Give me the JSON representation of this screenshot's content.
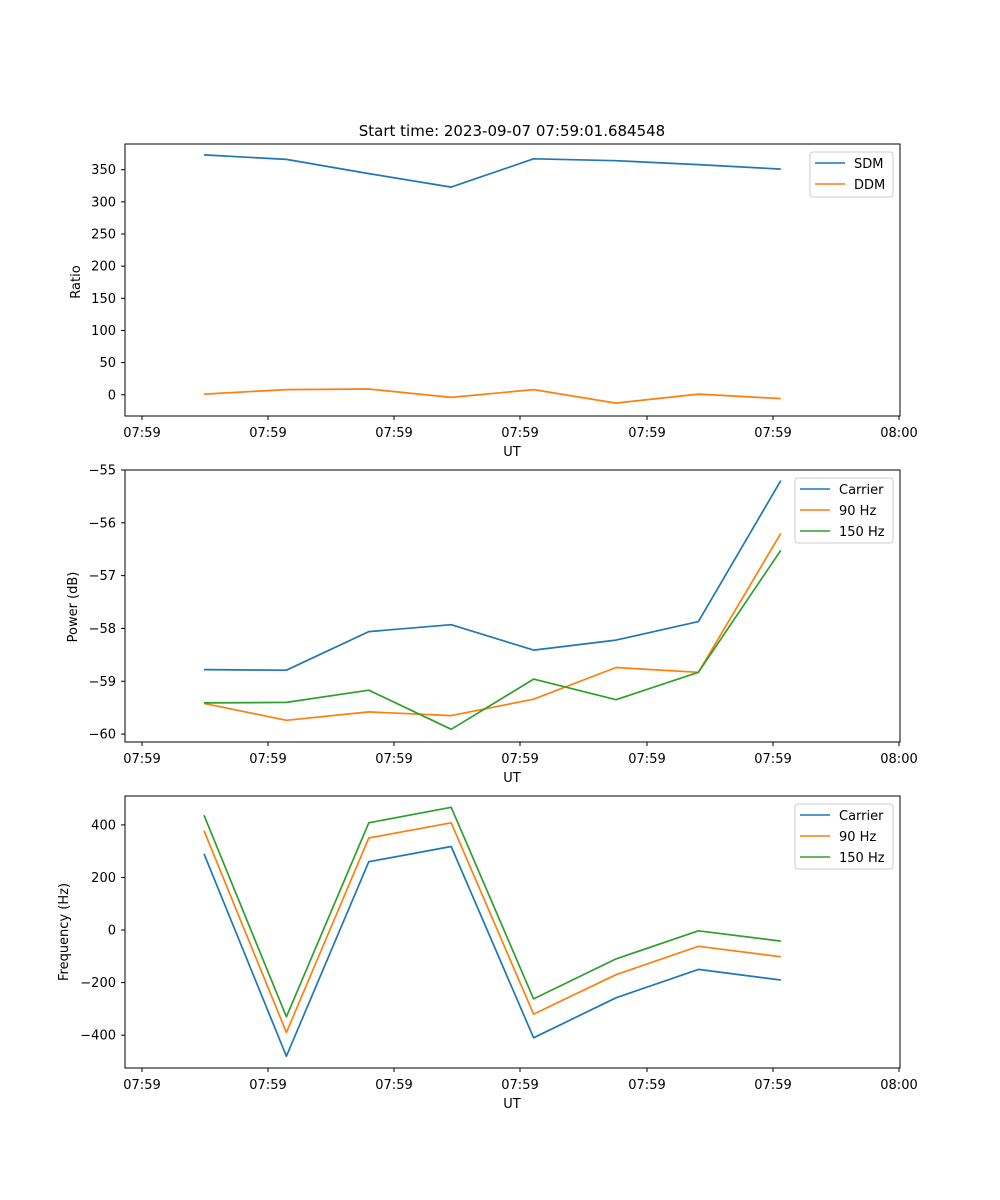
{
  "chart_data": [
    {
      "type": "line",
      "title": "Start time: 2023-09-07 07:59:01.684548",
      "xlabel": "UT",
      "ylabel": "Ratio",
      "xtick_labels": [
        "07:59",
        "07:59",
        "07:59",
        "07:59",
        "07:59",
        "07:59",
        "08:00"
      ],
      "ylim": [
        -33,
        390
      ],
      "yticks": [
        0,
        50,
        100,
        150,
        200,
        250,
        300,
        350
      ],
      "yticklabels": [
        "0",
        "50",
        "100",
        "150",
        "200",
        "250",
        "300",
        "350"
      ],
      "x": [
        1,
        2,
        3,
        4,
        5,
        6,
        7,
        8
      ],
      "series": [
        {
          "name": "SDM",
          "color": "#1f77b4",
          "values": [
            373,
            366,
            344,
            323,
            367,
            364,
            358,
            351
          ]
        },
        {
          "name": "DDM",
          "color": "#ff7f0e",
          "values": [
            1,
            8,
            9,
            -4,
            8,
            -13,
            1,
            -6
          ]
        }
      ],
      "legend": "top-right"
    },
    {
      "type": "line",
      "title": "",
      "xlabel": "UT",
      "ylabel": "Power (dB)",
      "xtick_labels": [
        "07:59",
        "07:59",
        "07:59",
        "07:59",
        "07:59",
        "07:59",
        "08:00"
      ],
      "ylim": [
        -60.15,
        -55
      ],
      "yticks": [
        -60,
        -59,
        -58,
        -57,
        -56,
        -55
      ],
      "yticklabels": [
        "−60",
        "−59",
        "−58",
        "−57",
        "−56",
        "−55"
      ],
      "x": [
        1,
        2,
        3,
        4,
        5,
        6,
        7,
        8
      ],
      "series": [
        {
          "name": "Carrier",
          "color": "#1f77b4",
          "values": [
            -58.78,
            -58.79,
            -58.06,
            -57.93,
            -58.41,
            -58.22,
            -57.87,
            -55.2
          ]
        },
        {
          "name": "90 Hz",
          "color": "#ff7f0e",
          "values": [
            -59.42,
            -59.74,
            -59.58,
            -59.65,
            -59.34,
            -58.74,
            -58.83,
            -56.2
          ]
        },
        {
          "name": "150 Hz",
          "color": "#2ca02c",
          "values": [
            -59.41,
            -59.4,
            -59.17,
            -59.91,
            -58.96,
            -59.35,
            -58.83,
            -56.52
          ]
        }
      ],
      "legend": "top-right"
    },
    {
      "type": "line",
      "title": "",
      "xlabel": "UT",
      "ylabel": "Frequency (Hz)",
      "xtick_labels": [
        "07:59",
        "07:59",
        "07:59",
        "07:59",
        "07:59",
        "07:59",
        "08:00"
      ],
      "ylim": [
        -525,
        510
      ],
      "yticks": [
        -400,
        -200,
        0,
        200,
        400
      ],
      "yticklabels": [
        "−400",
        "−200",
        "0",
        "200",
        "400"
      ],
      "x": [
        1,
        2,
        3,
        4,
        5,
        6,
        7,
        8
      ],
      "series": [
        {
          "name": "Carrier",
          "color": "#1f77b4",
          "values": [
            290,
            -480,
            260,
            318,
            -410,
            -258,
            -150,
            -190
          ]
        },
        {
          "name": "90 Hz",
          "color": "#ff7f0e",
          "values": [
            378,
            -390,
            350,
            408,
            -320,
            -170,
            -62,
            -102
          ]
        },
        {
          "name": "150 Hz",
          "color": "#2ca02c",
          "values": [
            437,
            -330,
            408,
            467,
            -262,
            -110,
            -3,
            -42
          ]
        }
      ],
      "legend": "top-right"
    }
  ]
}
